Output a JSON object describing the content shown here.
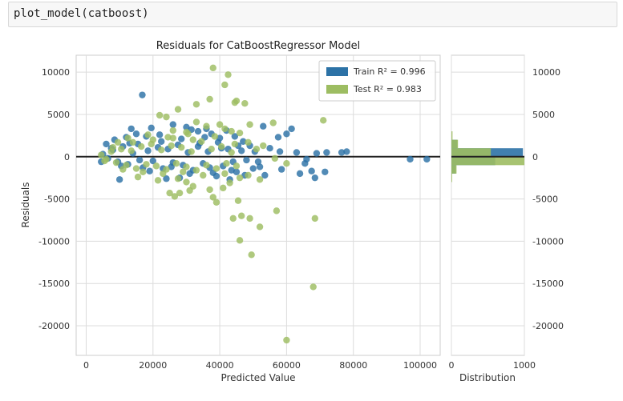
{
  "code_cell": {
    "text": "plot_model(catboost)"
  },
  "chart_data": {
    "type": "scatter",
    "title": "Residuals for CatBoostRegressor Model",
    "xlabel": "Predicted Value",
    "ylabel": "Residuals",
    "xlim": [
      -3000,
      106000
    ],
    "ylim": [
      -23500,
      12000
    ],
    "xticks": [
      0,
      20000,
      40000,
      60000,
      80000,
      100000
    ],
    "yticks": [
      10000,
      5000,
      0,
      -5000,
      -10000,
      -15000,
      -20000
    ],
    "grid": true,
    "legend_position": "top-right",
    "colors": {
      "train": "#2c72a6",
      "test": "#9dbd62",
      "zero_line": "#222222"
    },
    "series": [
      {
        "name": "Train",
        "legend_label": "Train R² = 0.996",
        "r2": 0.996,
        "points": [
          [
            16800,
            7300
          ],
          [
            13500,
            3300
          ],
          [
            15000,
            2700
          ],
          [
            19500,
            3400
          ],
          [
            22000,
            2600
          ],
          [
            26000,
            3800
          ],
          [
            30000,
            3500
          ],
          [
            31500,
            3200
          ],
          [
            33500,
            3000
          ],
          [
            36000,
            3300
          ],
          [
            37500,
            2700
          ],
          [
            40000,
            2200
          ],
          [
            42000,
            3100
          ],
          [
            44500,
            2400
          ],
          [
            47000,
            1800
          ],
          [
            49000,
            1300
          ],
          [
            53000,
            3600
          ],
          [
            57500,
            2300
          ],
          [
            60000,
            2700
          ],
          [
            61500,
            3300
          ],
          [
            55000,
            1000
          ],
          [
            58000,
            600
          ],
          [
            63000,
            500
          ],
          [
            66000,
            -300
          ],
          [
            69000,
            400
          ],
          [
            71500,
            -1800
          ],
          [
            72000,
            500
          ],
          [
            76500,
            500
          ],
          [
            78000,
            600
          ],
          [
            52000,
            -1200
          ],
          [
            58500,
            -1500
          ],
          [
            64000,
            -2000
          ],
          [
            65500,
            -800
          ],
          [
            67500,
            -1700
          ],
          [
            68500,
            -2500
          ],
          [
            43000,
            -2700
          ],
          [
            45000,
            -1800
          ],
          [
            47500,
            -2200
          ],
          [
            50000,
            -1400
          ],
          [
            53500,
            -2200
          ],
          [
            97000,
            -300
          ],
          [
            102000,
            -300
          ],
          [
            5000,
            300
          ],
          [
            6500,
            -200
          ],
          [
            8000,
            800
          ],
          [
            9500,
            -600
          ],
          [
            11000,
            1200
          ],
          [
            12500,
            -900
          ],
          [
            14000,
            400
          ],
          [
            15500,
            1500
          ],
          [
            17000,
            -1300
          ],
          [
            18500,
            700
          ],
          [
            20000,
            -500
          ],
          [
            21500,
            1100
          ],
          [
            23000,
            -1400
          ],
          [
            24500,
            900
          ],
          [
            26000,
            -700
          ],
          [
            27500,
            1400
          ],
          [
            29000,
            -1000
          ],
          [
            30500,
            500
          ],
          [
            32000,
            -1600
          ],
          [
            33500,
            1200
          ],
          [
            35000,
            -800
          ],
          [
            36500,
            600
          ],
          [
            38000,
            -1900
          ],
          [
            39500,
            1700
          ],
          [
            41000,
            -1100
          ],
          [
            42500,
            900
          ],
          [
            44000,
            -600
          ],
          [
            45500,
            1300
          ],
          [
            4500,
            -600
          ],
          [
            7500,
            1000
          ],
          [
            10500,
            -1100
          ],
          [
            13000,
            1600
          ],
          [
            16000,
            -400
          ],
          [
            19000,
            -1700
          ],
          [
            22500,
            1800
          ],
          [
            25500,
            -1200
          ],
          [
            28500,
            2100
          ],
          [
            31000,
            -2000
          ],
          [
            34000,
            1600
          ],
          [
            37000,
            -1300
          ],
          [
            40500,
            1000
          ],
          [
            43500,
            -1600
          ],
          [
            46500,
            700
          ],
          [
            10000,
            -2700
          ],
          [
            8500,
            2000
          ],
          [
            12000,
            2300
          ],
          [
            18000,
            2400
          ],
          [
            24000,
            -2600
          ],
          [
            28000,
            -2500
          ],
          [
            6000,
            1500
          ],
          [
            35500,
            2300
          ],
          [
            39000,
            -2300
          ],
          [
            48000,
            -400
          ],
          [
            50500,
            600
          ],
          [
            51500,
            -600
          ]
        ]
      },
      {
        "name": "Test",
        "legend_label": "Test R² = 0.983",
        "r2": 0.983,
        "points": [
          [
            38000,
            10500
          ],
          [
            42500,
            9700
          ],
          [
            41500,
            8500
          ],
          [
            22000,
            4900
          ],
          [
            24000,
            4700
          ],
          [
            33000,
            6200
          ],
          [
            37000,
            6800
          ],
          [
            44500,
            6400
          ],
          [
            45000,
            6600
          ],
          [
            47500,
            6300
          ],
          [
            27500,
            5600
          ],
          [
            26000,
            3100
          ],
          [
            30000,
            2900
          ],
          [
            33000,
            4100
          ],
          [
            36000,
            3600
          ],
          [
            40000,
            3800
          ],
          [
            41500,
            3300
          ],
          [
            43500,
            3000
          ],
          [
            46000,
            2800
          ],
          [
            49000,
            3800
          ],
          [
            56000,
            4000
          ],
          [
            71000,
            4300
          ],
          [
            48500,
            1700
          ],
          [
            51000,
            900
          ],
          [
            53000,
            1300
          ],
          [
            56500,
            -200
          ],
          [
            60000,
            -800
          ],
          [
            45500,
            -5200
          ],
          [
            44000,
            -7300
          ],
          [
            46500,
            -7000
          ],
          [
            49000,
            -7300
          ],
          [
            52000,
            -8300
          ],
          [
            57000,
            -6400
          ],
          [
            68500,
            -7300
          ],
          [
            46000,
            -9900
          ],
          [
            49500,
            -11600
          ],
          [
            68000,
            -15400
          ],
          [
            60000,
            -21700
          ],
          [
            39000,
            -5400
          ],
          [
            38000,
            -4800
          ],
          [
            37000,
            -3900
          ],
          [
            32000,
            -3500
          ],
          [
            30000,
            -3000
          ],
          [
            25000,
            -4300
          ],
          [
            26500,
            -4700
          ],
          [
            28000,
            -4300
          ],
          [
            31000,
            -4000
          ],
          [
            41000,
            -3700
          ],
          [
            43000,
            -3100
          ],
          [
            46000,
            -2500
          ],
          [
            48500,
            -2200
          ],
          [
            52000,
            -2700
          ],
          [
            4500,
            200
          ],
          [
            6000,
            -300
          ],
          [
            7500,
            600
          ],
          [
            9000,
            -700
          ],
          [
            10500,
            900
          ],
          [
            12000,
            -1000
          ],
          [
            13500,
            700
          ],
          [
            15000,
            -1400
          ],
          [
            16500,
            1200
          ],
          [
            18000,
            -900
          ],
          [
            19500,
            1500
          ],
          [
            21000,
            -1100
          ],
          [
            22500,
            800
          ],
          [
            24000,
            -1500
          ],
          [
            25500,
            1300
          ],
          [
            27000,
            -800
          ],
          [
            28500,
            1100
          ],
          [
            30000,
            -1200
          ],
          [
            31500,
            600
          ],
          [
            33000,
            -1600
          ],
          [
            34500,
            1800
          ],
          [
            36000,
            -1000
          ],
          [
            37500,
            900
          ],
          [
            39000,
            -1400
          ],
          [
            40500,
            1200
          ],
          [
            42000,
            -800
          ],
          [
            43500,
            500
          ],
          [
            45000,
            -1100
          ],
          [
            5500,
            -500
          ],
          [
            8000,
            1100
          ],
          [
            11000,
            -1500
          ],
          [
            14000,
            1700
          ],
          [
            17000,
            -1800
          ],
          [
            20000,
            2000
          ],
          [
            23000,
            -2000
          ],
          [
            26000,
            2200
          ],
          [
            29000,
            -1800
          ],
          [
            32000,
            2000
          ],
          [
            35000,
            -2200
          ],
          [
            38500,
            2400
          ],
          [
            41500,
            -2000
          ],
          [
            44500,
            1500
          ],
          [
            9500,
            1700
          ],
          [
            12500,
            2200
          ],
          [
            15500,
            -2400
          ],
          [
            18500,
            2600
          ],
          [
            21500,
            -2800
          ],
          [
            24500,
            2300
          ],
          [
            27500,
            -2600
          ],
          [
            30500,
            2700
          ]
        ]
      }
    ],
    "distribution_panel": {
      "xlabel": "Distribution",
      "xticks": [
        0,
        1000
      ],
      "xlim": [
        0,
        1000
      ],
      "train_bins": [
        {
          "center": 1500,
          "count": 80
        },
        {
          "center": 500,
          "count": 980
        },
        {
          "center": -500,
          "count": 600
        },
        {
          "center": -1500,
          "count": 60
        }
      ],
      "test_bins": [
        {
          "center": 2500,
          "count": 15
        },
        {
          "center": 1500,
          "count": 90
        },
        {
          "center": 500,
          "count": 540
        },
        {
          "center": -500,
          "count": 1000
        },
        {
          "center": -1500,
          "count": 70
        },
        {
          "center": -2500,
          "count": 10
        }
      ],
      "bin_width": 1000
    }
  }
}
